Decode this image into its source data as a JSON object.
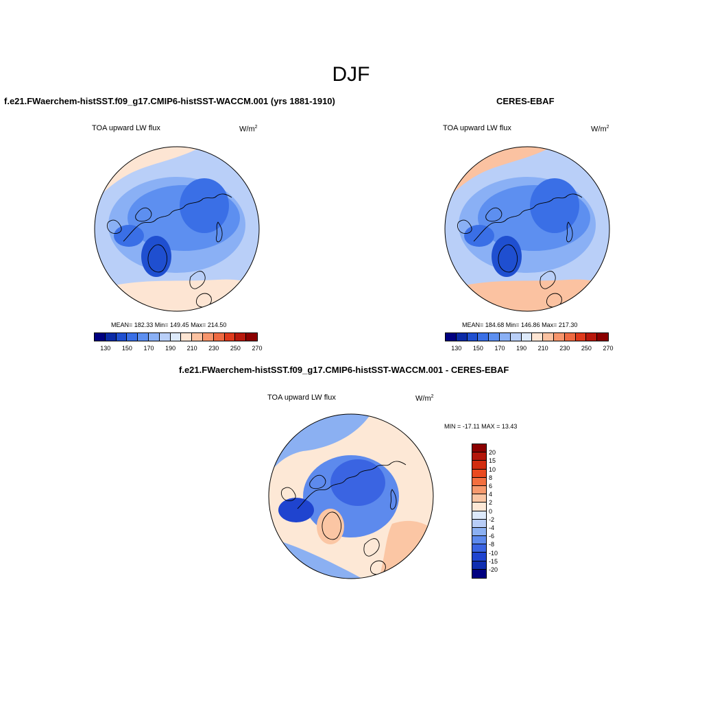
{
  "title": "DJF",
  "panels": {
    "model": {
      "title": "f.e21.FWaerchem-histSST.f09_g17.CMIP6-histSST-WACCM.001 (yrs 1881-1910)",
      "variable": "TOA upward LW flux",
      "units_base": "W/m",
      "units_exp": "2",
      "stats": "MEAN= 182.33  Min= 149.45  Max= 214.50"
    },
    "obs": {
      "title": "CERES-EBAF",
      "variable": "TOA upward LW flux",
      "units_base": "W/m",
      "units_exp": "2",
      "stats": "MEAN= 184.68  Min= 146.86  Max= 217.30"
    },
    "diff": {
      "title": "f.e21.FWaerchem-histSST.f09_g17.CMIP6-histSST-WACCM.001 - CERES-EBAF",
      "variable": "TOA upward LW flux",
      "units_base": "W/m",
      "units_exp": "2",
      "stats": "MIN = -17.11 MAX =  13.43"
    }
  },
  "colorbars": {
    "absolute": {
      "colors": [
        "#000080",
        "#0a2aa6",
        "#1f4fd0",
        "#3a6fe6",
        "#5d8ff0",
        "#8ab0f5",
        "#b9cff8",
        "#ddeafb",
        "#fde5d3",
        "#fbc2a1",
        "#f7956c",
        "#ef6a42",
        "#df3a1c",
        "#b8180c",
        "#8b0000"
      ],
      "tick_labels": [
        "130",
        "150",
        "170",
        "190",
        "210",
        "230",
        "250",
        "270"
      ]
    },
    "difference": {
      "colors": [
        "#8b0000",
        "#b3160a",
        "#d22d10",
        "#ea4a1f",
        "#f36f3f",
        "#f79a6e",
        "#fbc6a4",
        "#fde8d6",
        "#dde9fb",
        "#b8cdf7",
        "#8bb0f2",
        "#5d8aed",
        "#3a64e2",
        "#1f44cf",
        "#0f2eb0",
        "#000080"
      ],
      "tick_labels": [
        "20",
        "15",
        "10",
        "8",
        "6",
        "4",
        "2",
        "0",
        "-2",
        "-4",
        "-6",
        "-8",
        "-10",
        "-15",
        "-20"
      ]
    }
  }
}
